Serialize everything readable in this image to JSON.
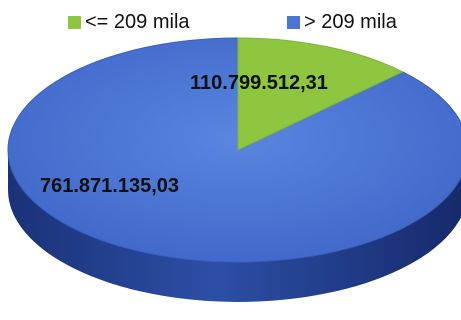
{
  "chart_data": {
    "type": "pie",
    "style": "3d",
    "title": "",
    "legend_position": "top",
    "slices": [
      {
        "label": "<= 209 mila",
        "value": 110799512.31,
        "value_label": "110.799.512,31",
        "color": "#8ec63f",
        "dark_color": "#4e8a1c"
      },
      {
        "label": "> 209 mila",
        "value": 761871135.03,
        "value_label": "761.871.135,03",
        "color": "#4a75d6",
        "dark_color": "#1c3680"
      }
    ]
  }
}
